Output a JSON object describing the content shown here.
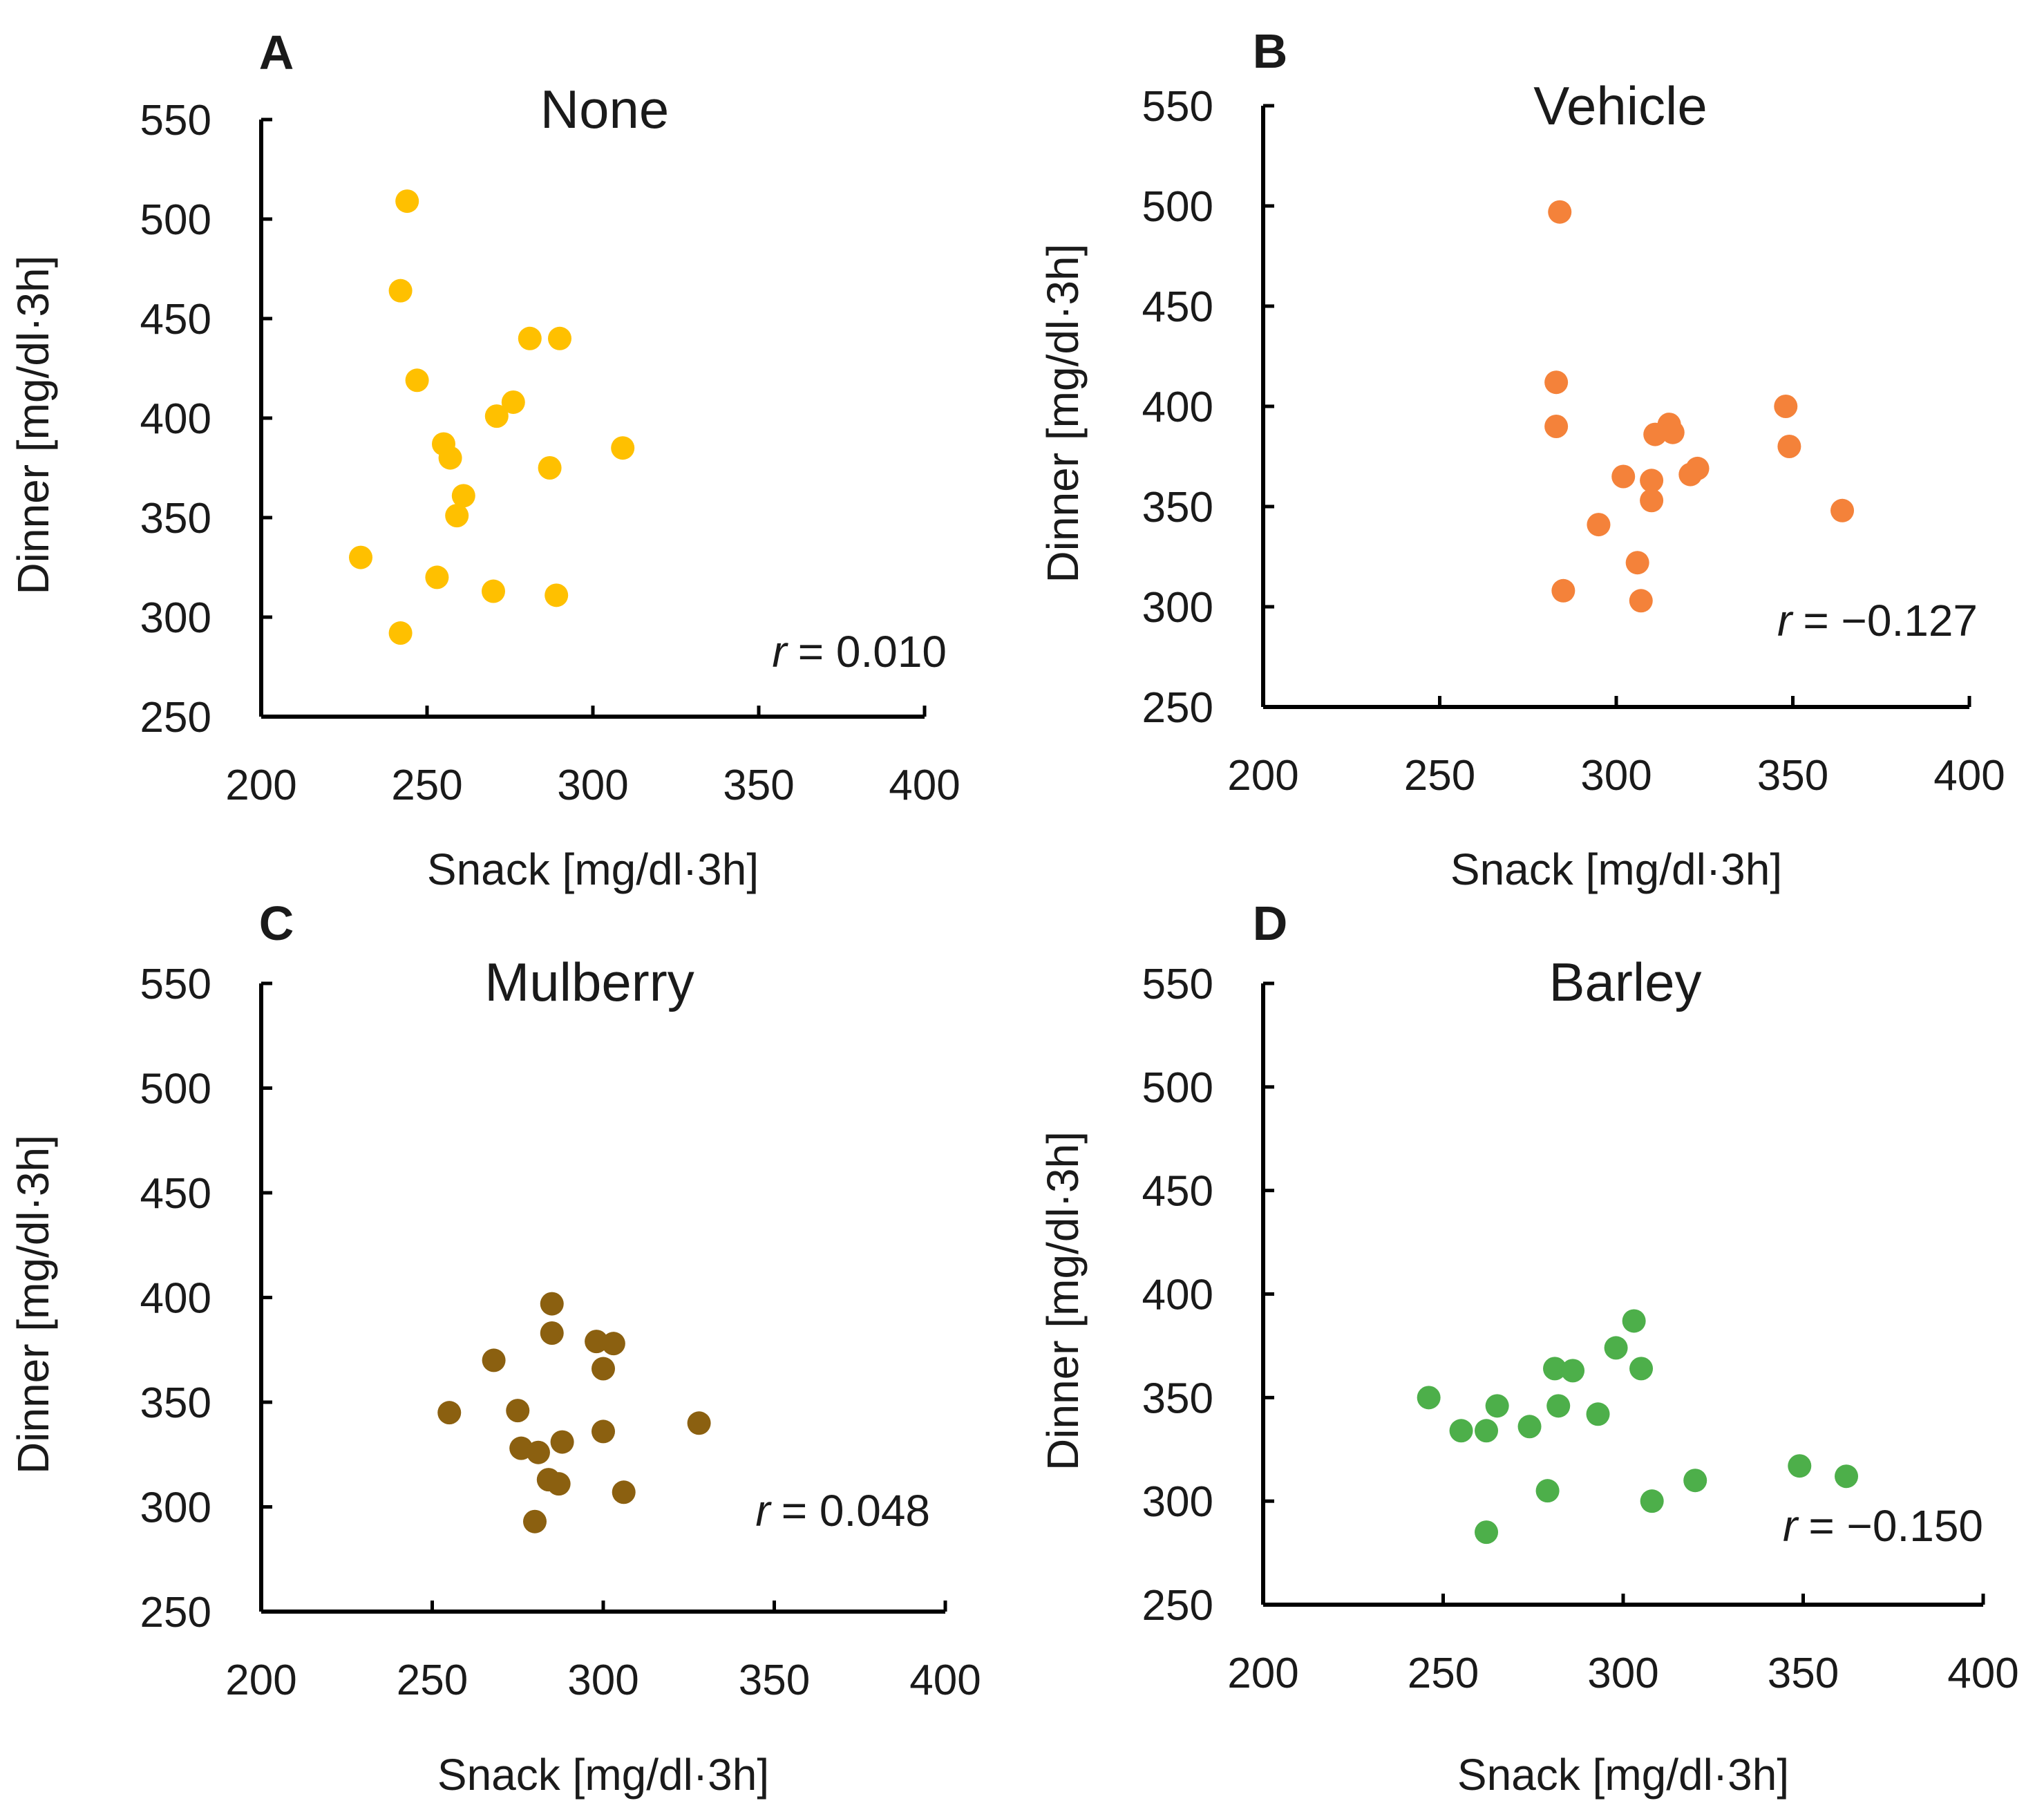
{
  "figure": {
    "x_axis_label": "Snack [mg/dl·3h]",
    "y_axis_label": "Dinner [mg/dl·3h]"
  },
  "chart_data": [
    {
      "type": "scatter",
      "panel": "A",
      "title": "None",
      "color": "#FFC000",
      "xlabel": "Snack [mg/dl·3h]",
      "ylabel": "Dinner [mg/dl·3h]",
      "xlim": [
        200,
        400
      ],
      "ylim": [
        250,
        550
      ],
      "xticks": [
        200,
        250,
        300,
        350,
        400
      ],
      "yticks": [
        250,
        300,
        350,
        400,
        450,
        500,
        550
      ],
      "r_label": "r",
      "r_value": "= 0.010",
      "points": [
        {
          "x": 244,
          "y": 509
        },
        {
          "x": 242,
          "y": 464
        },
        {
          "x": 247,
          "y": 419
        },
        {
          "x": 281,
          "y": 440
        },
        {
          "x": 290,
          "y": 440
        },
        {
          "x": 276,
          "y": 408
        },
        {
          "x": 271,
          "y": 401
        },
        {
          "x": 255,
          "y": 387
        },
        {
          "x": 257,
          "y": 380
        },
        {
          "x": 309,
          "y": 385
        },
        {
          "x": 287,
          "y": 375
        },
        {
          "x": 261,
          "y": 361
        },
        {
          "x": 259,
          "y": 351
        },
        {
          "x": 230,
          "y": 330
        },
        {
          "x": 253,
          "y": 320
        },
        {
          "x": 270,
          "y": 313
        },
        {
          "x": 289,
          "y": 311
        },
        {
          "x": 242,
          "y": 292
        }
      ]
    },
    {
      "type": "scatter",
      "panel": "B",
      "title": "Vehicle",
      "color": "#F4823A",
      "xlabel": "Snack [mg/dl·3h]",
      "ylabel": "Dinner [mg/dl·3h]",
      "xlim": [
        200,
        400
      ],
      "ylim": [
        250,
        550
      ],
      "xticks": [
        200,
        250,
        300,
        350,
        400
      ],
      "yticks": [
        250,
        300,
        350,
        400,
        450,
        500,
        550
      ],
      "r_label": "r",
      "r_value": "= −0.127",
      "points": [
        {
          "x": 284,
          "y": 497
        },
        {
          "x": 283,
          "y": 412
        },
        {
          "x": 283,
          "y": 390
        },
        {
          "x": 348,
          "y": 400
        },
        {
          "x": 349,
          "y": 380
        },
        {
          "x": 315,
          "y": 391
        },
        {
          "x": 316,
          "y": 387
        },
        {
          "x": 311,
          "y": 386
        },
        {
          "x": 302,
          "y": 365
        },
        {
          "x": 310,
          "y": 363
        },
        {
          "x": 323,
          "y": 369
        },
        {
          "x": 321,
          "y": 366
        },
        {
          "x": 310,
          "y": 353
        },
        {
          "x": 364,
          "y": 348
        },
        {
          "x": 295,
          "y": 341
        },
        {
          "x": 306,
          "y": 322
        },
        {
          "x": 285,
          "y": 308
        },
        {
          "x": 307,
          "y": 303
        }
      ]
    },
    {
      "type": "scatter",
      "panel": "C",
      "title": "Mulberry",
      "color": "#8B6010",
      "xlabel": "Snack [mg/dl·3h]",
      "ylabel": "Dinner [mg/dl·3h]",
      "xlim": [
        200,
        400
      ],
      "ylim": [
        250,
        550
      ],
      "xticks": [
        200,
        250,
        300,
        350,
        400
      ],
      "yticks": [
        250,
        300,
        350,
        400,
        450,
        500,
        550
      ],
      "r_label": "r",
      "r_value": "= 0.048",
      "points": [
        {
          "x": 285,
          "y": 397
        },
        {
          "x": 285,
          "y": 383
        },
        {
          "x": 298,
          "y": 379
        },
        {
          "x": 303,
          "y": 378
        },
        {
          "x": 300,
          "y": 366
        },
        {
          "x": 268,
          "y": 370
        },
        {
          "x": 275,
          "y": 346
        },
        {
          "x": 255,
          "y": 345
        },
        {
          "x": 328,
          "y": 340
        },
        {
          "x": 300,
          "y": 336
        },
        {
          "x": 288,
          "y": 331
        },
        {
          "x": 276,
          "y": 328
        },
        {
          "x": 281,
          "y": 326
        },
        {
          "x": 284,
          "y": 313
        },
        {
          "x": 287,
          "y": 311
        },
        {
          "x": 306,
          "y": 307
        },
        {
          "x": 280,
          "y": 293
        }
      ]
    },
    {
      "type": "scatter",
      "panel": "D",
      "title": "Barley",
      "color": "#4DAF4A",
      "xlabel": "Snack [mg/dl·3h]",
      "ylabel": "Dinner [mg/dl·3h]",
      "xlim": [
        200,
        400
      ],
      "ylim": [
        250,
        550
      ],
      "xticks": [
        200,
        250,
        300,
        350,
        400
      ],
      "yticks": [
        250,
        300,
        350,
        400,
        450,
        500,
        550
      ],
      "r_label": "r",
      "r_value": "= −0.150",
      "points": [
        {
          "x": 303,
          "y": 387
        },
        {
          "x": 298,
          "y": 374
        },
        {
          "x": 281,
          "y": 364
        },
        {
          "x": 286,
          "y": 363
        },
        {
          "x": 305,
          "y": 364
        },
        {
          "x": 246,
          "y": 350
        },
        {
          "x": 265,
          "y": 346
        },
        {
          "x": 282,
          "y": 346
        },
        {
          "x": 293,
          "y": 342
        },
        {
          "x": 255,
          "y": 334
        },
        {
          "x": 262,
          "y": 334
        },
        {
          "x": 274,
          "y": 336
        },
        {
          "x": 349,
          "y": 317
        },
        {
          "x": 362,
          "y": 312
        },
        {
          "x": 320,
          "y": 310
        },
        {
          "x": 279,
          "y": 305
        },
        {
          "x": 308,
          "y": 300
        },
        {
          "x": 262,
          "y": 285
        }
      ]
    }
  ]
}
